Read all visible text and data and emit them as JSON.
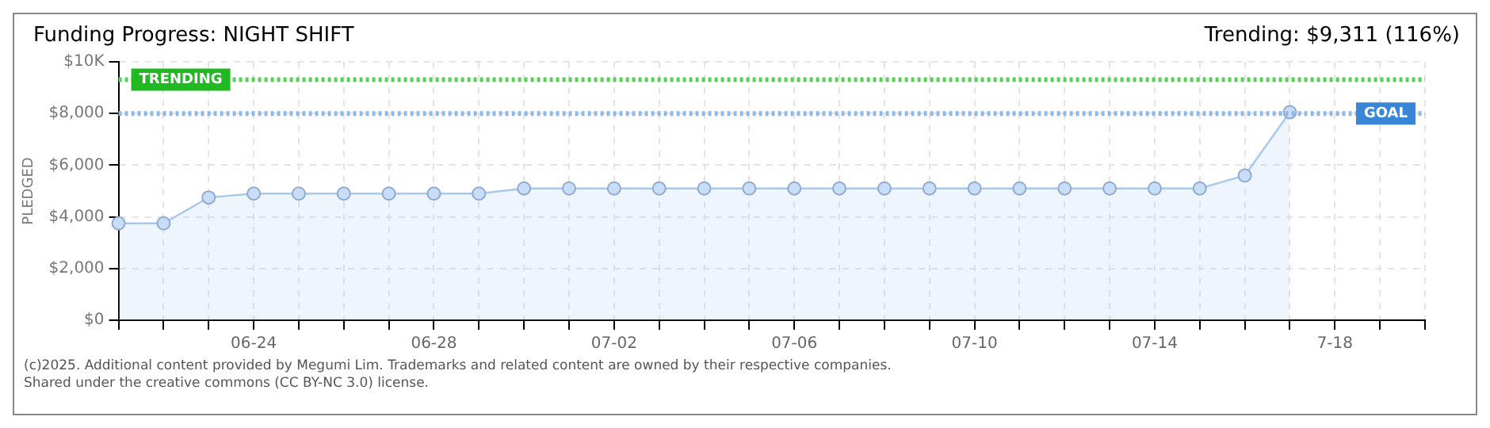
{
  "chart_data": {
    "type": "area",
    "title": "Funding Progress: NIGHT SHIFT",
    "subtitle": "Trending: $9,311 (116%)",
    "ylabel": "PLEDGED",
    "categories": [
      null,
      null,
      null,
      "06-24",
      null,
      null,
      null,
      "06-28",
      null,
      null,
      null,
      "07-02",
      null,
      null,
      null,
      "07-06",
      null,
      null,
      null,
      "07-10",
      null,
      null,
      null,
      "07-14",
      null,
      null,
      null,
      "7-18",
      null,
      null
    ],
    "series": [
      {
        "color": "#a9c8ee",
        "values": [
          3750,
          3750,
          4750,
          4900,
          4900,
          4900,
          4900,
          4900,
          4900,
          5100,
          5100,
          5100,
          5100,
          5100,
          5100,
          5100,
          5100,
          5100,
          5100,
          5100,
          5100,
          5100,
          5100,
          5100,
          5100,
          5600,
          8050,
          null,
          null,
          null
        ]
      }
    ],
    "ylim": [
      0,
      10000
    ],
    "yticks": [
      {
        "value": 0,
        "label": "$0"
      },
      {
        "value": 2000,
        "label": "$2,000"
      },
      {
        "value": 4000,
        "label": "$4,000"
      },
      {
        "value": 6000,
        "label": "$6,000"
      },
      {
        "value": 8000,
        "label": "$8,000"
      },
      {
        "value": 10000,
        "label": "$10K"
      }
    ],
    "grid": true,
    "marker": "circle",
    "ref_lines": [
      {
        "axis": "y",
        "value": 9311,
        "label": "TRENDING",
        "color": "#5ccc5c",
        "line_style": "dotted"
      },
      {
        "axis": "y",
        "value": 8000,
        "label": "GOAL",
        "color": "#8fb8e8",
        "line_style": "dotted"
      }
    ],
    "annotations": [
      "(c)2025. Additional content provided by Megumi Lim. Trademarks and related content are owned by their respective companies.",
      "Shared under the creative commons (CC BY-NC 3.0) license."
    ]
  }
}
